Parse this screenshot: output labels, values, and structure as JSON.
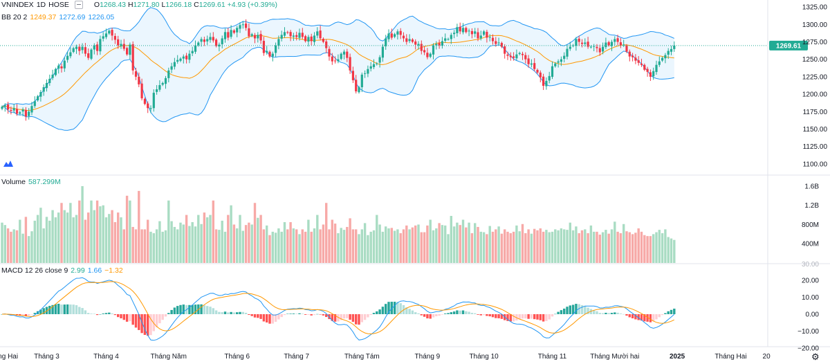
{
  "header": {
    "symbol": "VNINDEX",
    "interval": "1D",
    "exchange": "HOSE",
    "open_label": "O",
    "open": "1268.43",
    "high_label": "H",
    "high": "1271.80",
    "low_label": "L",
    "low": "1266.18",
    "close_label": "C",
    "close": "1269.61",
    "change": "+4.93 (+0.39%)"
  },
  "bb_legend": {
    "name": "BB 20 2",
    "basis": "1249.37",
    "upper": "1272.69",
    "lower": "1226.05"
  },
  "volume_legend": {
    "name": "Volume",
    "value": "587.299M"
  },
  "macd_legend": {
    "name": "MACD 12 26 close 9",
    "hist": "2.99",
    "macd": "1.66",
    "signal": "−1.32"
  },
  "colors": {
    "up": "#22ab94",
    "down": "#f23645",
    "vol_up": "#a9dcc3",
    "vol_down": "#f7a9a7",
    "bb_basis": "#ff9800",
    "bb_band": "#2196f3",
    "bb_fill": "#e3f2fd",
    "macd": "#2196f3",
    "signal": "#ff9800"
  },
  "current_price_label": "1269.61",
  "chart_data": [
    {
      "type": "candlestick",
      "title": "VNINDEX 1D HOSE",
      "y_ticks": [
        "1325.00",
        "1300.00",
        "1275.00",
        "1250.00",
        "1225.00",
        "1200.00",
        "1175.00",
        "1150.00",
        "1125.00",
        "1100.00"
      ],
      "ylim": [
        1085,
        1335
      ],
      "x_ticks": [
        {
          "label": "Tháng Hai",
          "i": 0
        },
        {
          "label": "Tháng 3",
          "i": 15
        },
        {
          "label": "Tháng 4",
          "i": 35
        },
        {
          "label": "Tháng Năm",
          "i": 56
        },
        {
          "label": "Tháng 6",
          "i": 79
        },
        {
          "label": "Tháng 7",
          "i": 99
        },
        {
          "label": "Tháng Tám",
          "i": 121
        },
        {
          "label": "Tháng 9",
          "i": 143
        },
        {
          "label": "Tháng 10",
          "i": 162
        },
        {
          "label": "Tháng 11",
          "i": 185
        },
        {
          "label": "Tháng Mười hai",
          "i": 206
        },
        {
          "label": "2025",
          "i": 227
        },
        {
          "label": "Tháng Hai",
          "i": 245
        },
        {
          "label": "20",
          "i": 257
        }
      ],
      "closes": [
        1182,
        1184,
        1178,
        1176,
        1180,
        1172,
        1174,
        1178,
        1168,
        1175,
        1183,
        1190,
        1197,
        1203,
        1210,
        1216,
        1222,
        1228,
        1236,
        1241,
        1237,
        1248,
        1255,
        1260,
        1266,
        1268,
        1262,
        1268,
        1258,
        1252,
        1264,
        1270,
        1262,
        1279,
        1283,
        1287,
        1291,
        1284,
        1278,
        1270,
        1272,
        1265,
        1257,
        1271,
        1234,
        1225,
        1214,
        1194,
        1186,
        1180,
        1180,
        1202,
        1207,
        1213,
        1216,
        1223,
        1234,
        1240,
        1246,
        1249,
        1251,
        1254,
        1250,
        1258,
        1262,
        1270,
        1274,
        1279,
        1275,
        1279,
        1282,
        1277,
        1269,
        1271,
        1280,
        1289,
        1281,
        1292,
        1288,
        1295,
        1299,
        1300,
        1295,
        1283,
        1286,
        1280,
        1285,
        1277,
        1259,
        1262,
        1254,
        1258,
        1270,
        1279,
        1285,
        1289,
        1288,
        1283,
        1284,
        1282,
        1288,
        1282,
        1276,
        1282,
        1276,
        1284,
        1290,
        1280,
        1275,
        1266,
        1254,
        1247,
        1248,
        1250,
        1258,
        1261,
        1252,
        1234,
        1220,
        1204,
        1210,
        1228,
        1230,
        1236,
        1240,
        1243,
        1244,
        1253,
        1268,
        1280,
        1287,
        1281,
        1286,
        1290,
        1285,
        1280,
        1275,
        1279,
        1275,
        1271,
        1272,
        1262,
        1260,
        1253,
        1258,
        1270,
        1272,
        1270,
        1276,
        1280,
        1279,
        1285,
        1288,
        1296,
        1290,
        1295,
        1289,
        1291,
        1286,
        1290,
        1280,
        1284,
        1290,
        1281,
        1282,
        1276,
        1272,
        1274,
        1268,
        1258,
        1255,
        1253,
        1252,
        1257,
        1259,
        1256,
        1250,
        1243,
        1244,
        1236,
        1231,
        1224,
        1212,
        1219,
        1226,
        1240,
        1244,
        1247,
        1250,
        1255,
        1265,
        1268,
        1270,
        1279,
        1275,
        1272,
        1274,
        1268,
        1268,
        1269,
        1266,
        1260,
        1268,
        1274,
        1270,
        1275,
        1279,
        1275,
        1270,
        1271,
        1261,
        1254,
        1253,
        1248,
        1245,
        1242,
        1235,
        1232,
        1225,
        1233,
        1242,
        1247,
        1252,
        1256,
        1262,
        1264.68,
        1269.61
      ],
      "bb_basis": "overlay, computed from closes (period 20, stddev 2)",
      "volume_ticks": [
        "1.6B",
        "1.2B",
        "800M",
        "400M"
      ],
      "volume": [
        840,
        790,
        720,
        650,
        700,
        680,
        900,
        610,
        960,
        560,
        660,
        880,
        1000,
        1150,
        720,
        960,
        880,
        1100,
        950,
        1050,
        1250,
        1100,
        1050,
        1250,
        950,
        1000,
        1300,
        1600,
        900,
        1050,
        1300,
        1100,
        1300,
        1180,
        1200,
        950,
        1020,
        1100,
        850,
        1050,
        950,
        700,
        1400,
        1300,
        750,
        700,
        1500,
        700,
        700,
        900,
        650,
        620,
        700,
        870,
        650,
        680,
        1300,
        870,
        750,
        700,
        840,
        800,
        1000,
        770,
        850,
        760,
        1000,
        810,
        1050,
        950,
        1000,
        1300,
        700,
        690,
        880,
        650,
        1000,
        1200,
        800,
        720,
        1000,
        670,
        790,
        840,
        800,
        1250,
        940,
        1000,
        700,
        780,
        580,
        650,
        630,
        720,
        650,
        850,
        700,
        850,
        720,
        700,
        600,
        700,
        650,
        900,
        650,
        720,
        1000,
        700,
        800,
        1250,
        700,
        900,
        820,
        620,
        730,
        690,
        750,
        930,
        700,
        700,
        600,
        700,
        830,
        580,
        650,
        680,
        1000,
        800,
        650,
        760,
        720,
        730,
        670,
        700,
        620,
        700,
        780,
        700,
        740,
        780,
        800,
        640,
        640,
        780,
        900,
        680,
        720,
        830,
        790,
        780,
        600,
        980,
        760,
        840,
        790,
        900,
        740,
        840,
        620,
        830,
        750,
        650,
        640,
        600,
        770,
        650,
        700,
        760,
        610,
        700,
        650,
        620,
        650,
        780,
        660,
        810,
        620,
        700,
        610,
        710,
        680,
        720,
        650,
        690,
        640,
        650,
        700,
        680,
        720,
        700,
        690,
        840,
        680,
        760,
        620,
        680,
        700,
        620,
        780,
        650,
        650,
        590,
        640,
        690,
        610,
        700,
        860,
        650,
        620,
        810,
        660,
        640,
        600,
        630,
        720,
        650,
        580,
        560,
        560,
        600,
        640,
        690,
        620,
        700,
        540,
        510,
        480,
        560,
        590,
        600,
        560,
        600,
        610,
        640,
        680,
        587.299
      ],
      "macd_ticks": [
        "20.00",
        "10.00",
        "0.00",
        "−10.00",
        "−20.00"
      ],
      "macd_current": {
        "macd": 1.66,
        "signal": -1.32,
        "hist": 2.99
      }
    }
  ]
}
